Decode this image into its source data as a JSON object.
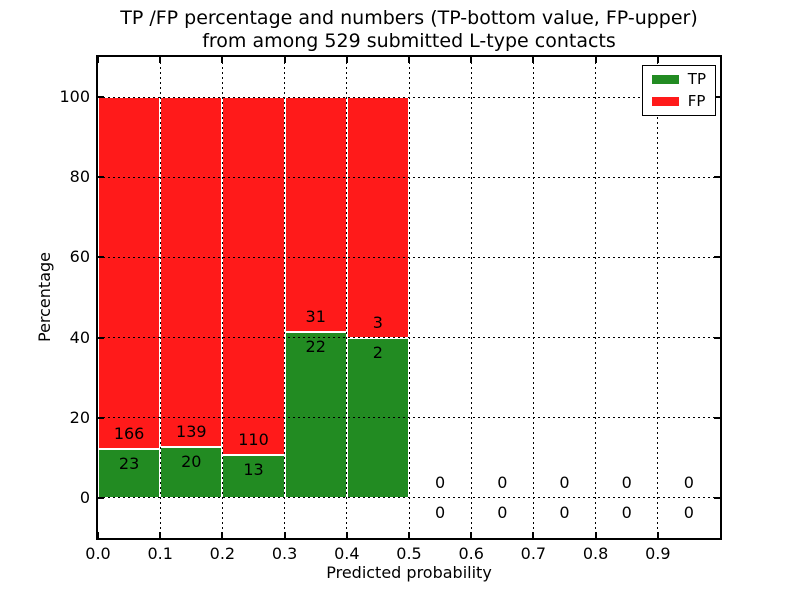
{
  "chart_data": {
    "type": "bar",
    "stacked": true,
    "title": "TP /FP percentage and numbers (TP-bottom value, FP-upper)\nfrom among 529 submitted L-type contacts",
    "title_line1": "TP /FP percentage and numbers (TP-bottom value, FP-upper)",
    "title_line2": "from among 529 submitted L-type contacts",
    "xlabel": "Predicted probability",
    "ylabel": "Percentage",
    "xlim": [
      0.0,
      1.0
    ],
    "ylim": [
      -10,
      110
    ],
    "grid": true,
    "legend_position": "upper right",
    "total_submitted": 529,
    "bin_width": 0.1,
    "xtick_values": [
      0.0,
      0.1,
      0.2,
      0.3,
      0.4,
      0.5,
      0.6,
      0.7,
      0.8,
      0.9
    ],
    "xtick_labels": [
      "0.0",
      "0.1",
      "0.2",
      "0.3",
      "0.4",
      "0.5",
      "0.6",
      "0.7",
      "0.8",
      "0.9"
    ],
    "ytick_values": [
      0,
      20,
      40,
      60,
      80,
      100
    ],
    "ytick_labels": [
      "0",
      "20",
      "40",
      "60",
      "80",
      "100"
    ],
    "series": [
      {
        "name": "TP",
        "color": "#228B22",
        "counts": [
          23,
          20,
          13,
          22,
          2,
          0,
          0,
          0,
          0,
          0
        ],
        "values_pct": [
          12.2,
          12.6,
          10.6,
          41.5,
          40.0,
          0,
          0,
          0,
          0,
          0
        ]
      },
      {
        "name": "FP",
        "color": "#FF1A1A",
        "counts": [
          166,
          139,
          110,
          31,
          3,
          0,
          0,
          0,
          0,
          0
        ],
        "values_pct": [
          87.8,
          87.4,
          89.4,
          58.5,
          60.0,
          0,
          0,
          0,
          0,
          0
        ]
      }
    ],
    "bins": [
      {
        "x_start": 0.0,
        "x_end": 0.1,
        "tp_count": 23,
        "fp_count": 166,
        "tp_pct": 12.2,
        "fp_pct": 87.8
      },
      {
        "x_start": 0.1,
        "x_end": 0.2,
        "tp_count": 20,
        "fp_count": 139,
        "tp_pct": 12.6,
        "fp_pct": 87.4
      },
      {
        "x_start": 0.2,
        "x_end": 0.3,
        "tp_count": 13,
        "fp_count": 110,
        "tp_pct": 10.6,
        "fp_pct": 89.4
      },
      {
        "x_start": 0.3,
        "x_end": 0.4,
        "tp_count": 22,
        "fp_count": 31,
        "tp_pct": 41.5,
        "fp_pct": 58.5
      },
      {
        "x_start": 0.4,
        "x_end": 0.5,
        "tp_count": 2,
        "fp_count": 3,
        "tp_pct": 40.0,
        "fp_pct": 60.0
      },
      {
        "x_start": 0.5,
        "x_end": 0.6,
        "tp_count": 0,
        "fp_count": 0,
        "tp_pct": 0,
        "fp_pct": 0
      },
      {
        "x_start": 0.6,
        "x_end": 0.7,
        "tp_count": 0,
        "fp_count": 0,
        "tp_pct": 0,
        "fp_pct": 0
      },
      {
        "x_start": 0.7,
        "x_end": 0.8,
        "tp_count": 0,
        "fp_count": 0,
        "tp_pct": 0,
        "fp_pct": 0
      },
      {
        "x_start": 0.8,
        "x_end": 0.9,
        "tp_count": 0,
        "fp_count": 0,
        "tp_pct": 0,
        "fp_pct": 0
      },
      {
        "x_start": 0.9,
        "x_end": 1.0,
        "tp_count": 0,
        "fp_count": 0,
        "tp_pct": 0,
        "fp_pct": 0
      }
    ]
  }
}
